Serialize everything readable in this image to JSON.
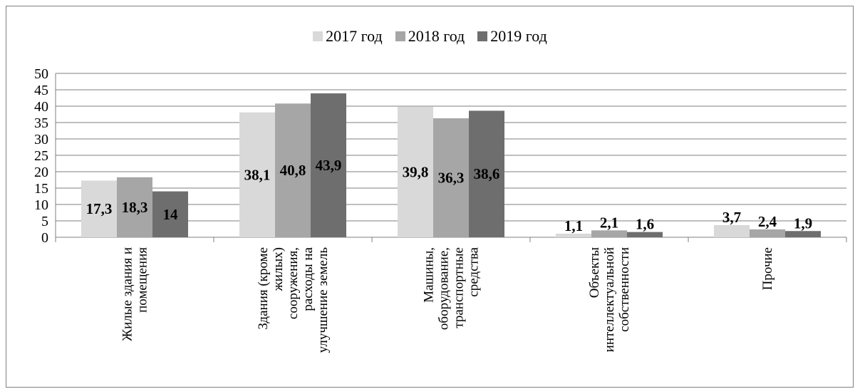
{
  "chart_data": {
    "type": "bar",
    "categories": [
      [
        "Жилые здания и",
        "помещения"
      ],
      [
        "Здания (кроме",
        "жилых)",
        "сооружения,",
        "расходы на",
        "улучшение  земель"
      ],
      [
        "Машины,",
        "оборудование,",
        "транспортные",
        "средства"
      ],
      [
        "Объекты",
        "интеллектуальной",
        "собственности"
      ],
      [
        "Прочие"
      ]
    ],
    "series": [
      {
        "name": "2017 год",
        "color": "#d9d9d9",
        "values": [
          17.3,
          38.1,
          39.8,
          1.1,
          3.7
        ],
        "labels": [
          "17,3",
          "38,1",
          "39,8",
          "1,1",
          "3,7"
        ]
      },
      {
        "name": "2018 год",
        "color": "#a6a6a6",
        "values": [
          18.3,
          40.8,
          36.3,
          2.1,
          2.4
        ],
        "labels": [
          "18,3",
          "40,8",
          "36,3",
          "2,1",
          "2,4"
        ]
      },
      {
        "name": "2019 год",
        "color": "#6e6e6e",
        "values": [
          14,
          43.9,
          38.6,
          1.6,
          1.9
        ],
        "labels": [
          "14",
          "43,9",
          "38,6",
          "1,6",
          "1,9"
        ]
      }
    ],
    "ylim": [
      0,
      50
    ],
    "yticks": [
      "0",
      "5",
      "10",
      "15",
      "20",
      "25",
      "30",
      "35",
      "40",
      "45",
      "50"
    ],
    "grid": true,
    "legend_position": "top-center",
    "title": "",
    "xlabel": "",
    "ylabel": ""
  }
}
